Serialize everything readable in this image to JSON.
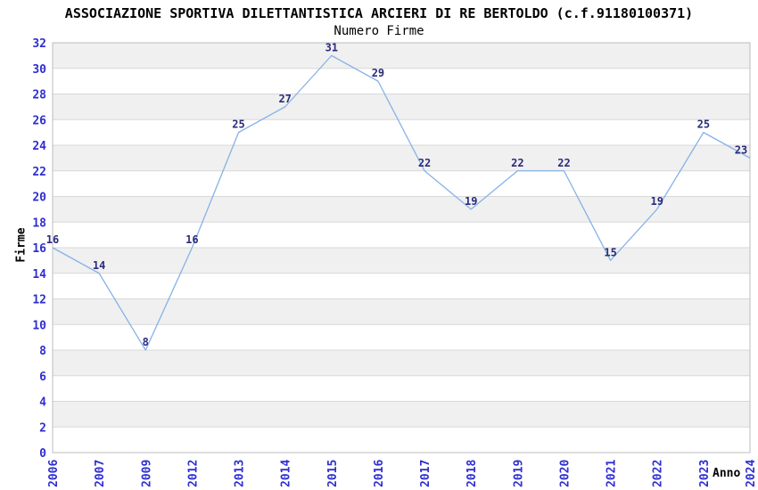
{
  "header": {
    "title": "ASSOCIAZIONE SPORTIVA DILETTANTISTICA ARCIERI DI RE BERTOLDO (c.f.91180100371)",
    "subtitle": "Numero Firme"
  },
  "chart_data": {
    "type": "line",
    "title": "ASSOCIAZIONE SPORTIVA DILETTANTISTICA ARCIERI DI RE BERTOLDO (c.f.91180100371)",
    "subtitle": "Numero Firme",
    "xlabel": "Anno",
    "ylabel": "Firme",
    "categories": [
      "2006",
      "2007",
      "2009",
      "2012",
      "2013",
      "2014",
      "2015",
      "2016",
      "2017",
      "2018",
      "2019",
      "2020",
      "2021",
      "2022",
      "2023",
      "2024"
    ],
    "values": [
      16,
      14,
      8,
      16,
      25,
      27,
      31,
      29,
      22,
      19,
      22,
      22,
      15,
      19,
      25,
      23
    ],
    "ylim": [
      0,
      32
    ],
    "ytick_step": 2,
    "grid": true,
    "alternating_bands": true,
    "point_labels": true,
    "legend_position": "none",
    "colors": {
      "line": "#86b2e6",
      "axis_tick_labels": "#2e2ed2",
      "point_labels": "#2b2b7d",
      "band_alt": "#f0f0f0",
      "band_base": "#ffffff",
      "grid_line": "#d8d8d8",
      "plot_border": "#bdbdbd",
      "titles": "#000000",
      "background": "#ffffff"
    }
  }
}
